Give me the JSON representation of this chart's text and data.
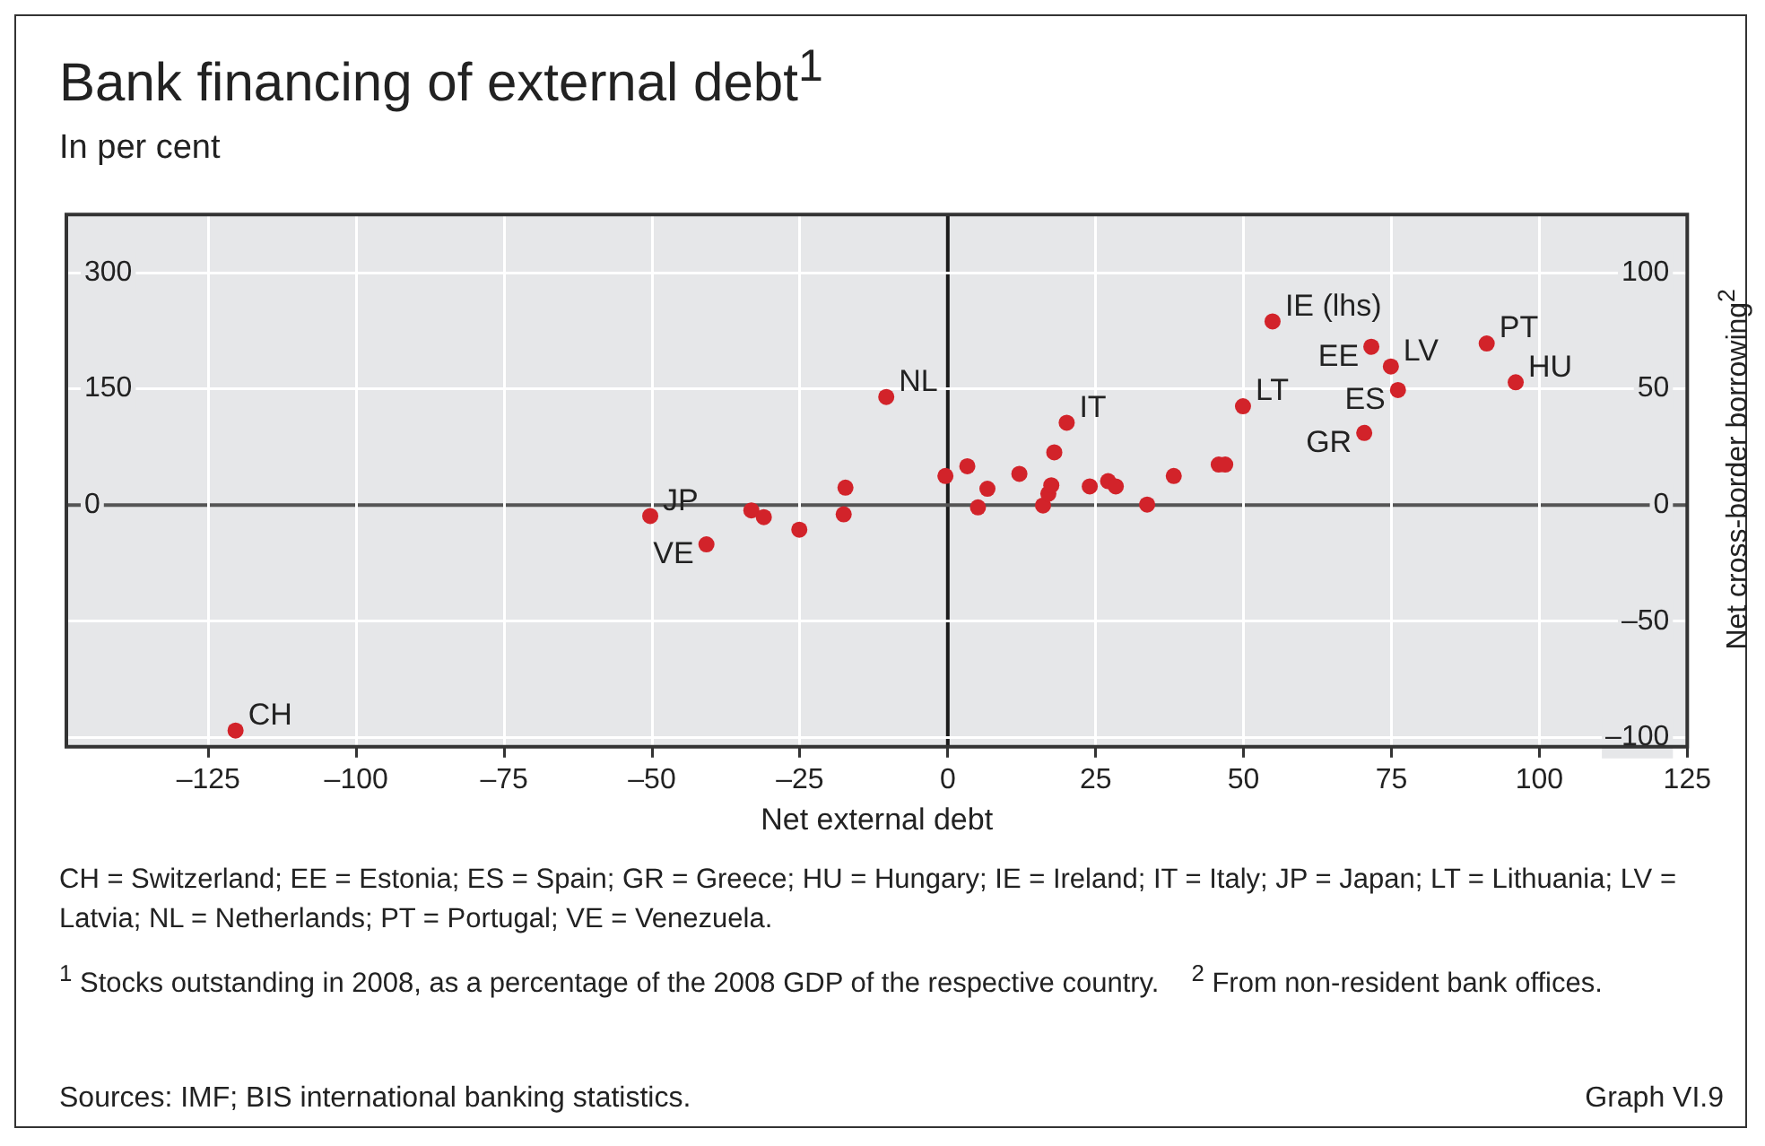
{
  "chart_data": {
    "type": "scatter",
    "title": "Bank financing of external debt$^{1}$",
    "subtitle": "In per cent",
    "xlabel": "Net external debt",
    "ylabel": "Net cross-border borrowing$^{2}$",
    "xlim": [
      -149,
      125
    ],
    "xticks": [
      {
        "value": -125,
        "label": "–125"
      },
      {
        "value": -100,
        "label": "–100"
      },
      {
        "value": -75,
        "label": "–75"
      },
      {
        "value": -50,
        "label": "–50"
      },
      {
        "value": -25,
        "label": "–25"
      },
      0,
      25,
      50,
      75,
      100,
      125
    ],
    "ylim": [
      -104,
      125
    ],
    "yticks": [
      {
        "value": -100,
        "label": "–100"
      },
      {
        "value": -50,
        "label": "–50"
      },
      0,
      50,
      100
    ],
    "y2lim": [
      -312,
      375
    ],
    "y2ticks": [
      0,
      150,
      300
    ],
    "grid": true,
    "marker": "circle",
    "legend": false,
    "ref_lines": [
      {
        "axis": "x",
        "value": 0,
        "color": "#1a1a1a"
      },
      {
        "axis": "y",
        "value": 0,
        "color": "#555555"
      }
    ],
    "series": [
      {
        "axis": "y",
        "color": "#d2232a",
        "x": [
          -120.4,
          -50.3,
          -40.8,
          -33.2,
          -31.1,
          -25.1,
          -17.3,
          -17.6,
          -10.4,
          -0.4,
          3.3,
          6.7,
          5.1,
          12.1,
          16.1,
          17,
          17.5,
          18,
          20.1,
          24,
          27.1,
          28.4,
          33.7,
          38.2,
          45.8,
          46.9,
          49.9,
          71.6,
          74.9,
          76.1,
          70.4,
          91.1,
          96
        ],
        "values": [
          -97,
          -4.7,
          -16.9,
          -2.3,
          -5.2,
          -10.6,
          7.5,
          -4,
          46.5,
          12.5,
          16.7,
          7,
          -1,
          13.4,
          -0.2,
          4.9,
          8.5,
          22.7,
          35.4,
          8,
          10.3,
          8,
          0.2,
          12.5,
          17.4,
          17.4,
          42.5,
          68.1,
          59.6,
          49.5,
          31,
          69.5,
          52.8
        ]
      },
      {
        "axis": "y2",
        "color": "#d2232a",
        "x": [
          54.9
        ],
        "values": [
          237
        ]
      }
    ],
    "annotations": [
      {
        "text": "CH",
        "x": -120.4,
        "y": -97
      },
      {
        "text": "JP",
        "x": -50.3,
        "y": -4.7
      },
      {
        "text": "VE",
        "x": -40.8,
        "y": -16.9
      },
      {
        "text": "NL",
        "x": -10.4,
        "y": 46.5
      },
      {
        "text": "IT",
        "x": 20.1,
        "y": 35.4
      },
      {
        "text": "LT",
        "x": 49.9,
        "y": 42.5
      },
      {
        "text": "IE (lhs)",
        "x": 54.9,
        "y": 79
      },
      {
        "text": "EE",
        "x": 71.6,
        "y": 68.1
      },
      {
        "text": "LV",
        "x": 74.9,
        "y": 59.6
      },
      {
        "text": "ES",
        "x": 76.1,
        "y": 49.5
      },
      {
        "text": "GR",
        "x": 70.4,
        "y": 31
      },
      {
        "text": "PT",
        "x": 91.1,
        "y": 69.5
      },
      {
        "text": "HU",
        "x": 96,
        "y": 52.8
      },
      "CH = Switzerland; EE = Estonia; ES = Spain; GR = Greece; HU = Hungary; IE = Ireland; IT = Italy; JP = Japan; LT = Lithuania; LV = Latvia; NL = Netherlands; PT = Portugal; VE = Venezuela.",
      "$^{1}$ Stocks outstanding in 2008, as a percentage of the 2008 GDP of the respective country.",
      "$^{2}$ From non-resident bank offices.",
      "Sources: IMF; BIS international banking statistics.",
      "Graph VI.9"
    ]
  }
}
